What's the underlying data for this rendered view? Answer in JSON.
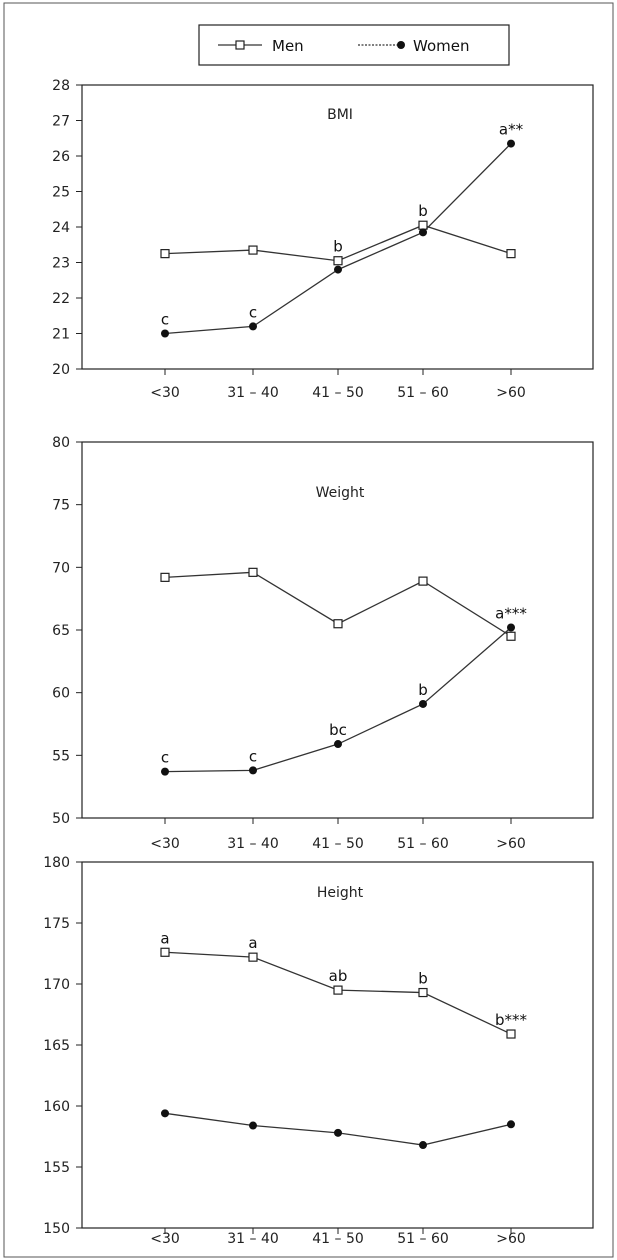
{
  "legend": {
    "items": [
      {
        "label": "Men",
        "marker": "square-open",
        "line": "solid"
      },
      {
        "label": "Women",
        "marker": "circle-filled",
        "line": "dotted"
      }
    ]
  },
  "colors": {
    "line": "#333333",
    "marker_fill_women": "#111111",
    "marker_fill_men": "#ffffff"
  },
  "chart_data": [
    {
      "type": "line",
      "title": "BMI",
      "categories": [
        "<30",
        "31 – 40",
        "41 – 50",
        "51 – 60",
        ">60"
      ],
      "ylim": [
        20,
        28
      ],
      "yticks": [
        20,
        21,
        22,
        23,
        24,
        25,
        26,
        27,
        28
      ],
      "xlabel": "",
      "ylabel": "",
      "series": [
        {
          "name": "Men",
          "values": [
            23.25,
            23.35,
            23.05,
            24.05,
            23.25
          ],
          "labels": [
            "",
            "",
            "b",
            "b",
            ""
          ]
        },
        {
          "name": "Women",
          "values": [
            21.0,
            21.2,
            22.8,
            23.85,
            26.35
          ],
          "labels": [
            "c",
            "c",
            "",
            "",
            "a**"
          ]
        }
      ]
    },
    {
      "type": "line",
      "title": "Weight",
      "categories": [
        "<30",
        "31 – 40",
        "41 – 50",
        "51 – 60",
        ">60"
      ],
      "ylim": [
        50,
        80
      ],
      "yticks": [
        50,
        55,
        60,
        65,
        70,
        75,
        80
      ],
      "xlabel": "",
      "ylabel": "",
      "series": [
        {
          "name": "Men",
          "values": [
            69.2,
            69.6,
            65.5,
            68.9,
            64.5
          ],
          "labels": [
            "",
            "",
            "",
            "",
            ""
          ]
        },
        {
          "name": "Women",
          "values": [
            53.7,
            53.8,
            55.9,
            59.1,
            65.2
          ],
          "labels": [
            "c",
            "c",
            "bc",
            "b",
            "a***"
          ]
        }
      ]
    },
    {
      "type": "line",
      "title": "Height",
      "categories": [
        "<30",
        "31 – 40",
        "41 – 50",
        "51 – 60",
        ">60"
      ],
      "ylim": [
        150,
        180
      ],
      "yticks": [
        150,
        155,
        160,
        165,
        170,
        175,
        180
      ],
      "xlabel": "",
      "ylabel": "",
      "series": [
        {
          "name": "Men",
          "values": [
            172.6,
            172.2,
            169.5,
            169.3,
            165.9
          ],
          "labels": [
            "a",
            "a",
            "ab",
            "b",
            "b***"
          ]
        },
        {
          "name": "Women",
          "values": [
            159.4,
            158.4,
            157.8,
            156.8,
            158.5
          ],
          "labels": [
            "",
            "",
            "",
            "",
            ""
          ]
        }
      ]
    }
  ]
}
